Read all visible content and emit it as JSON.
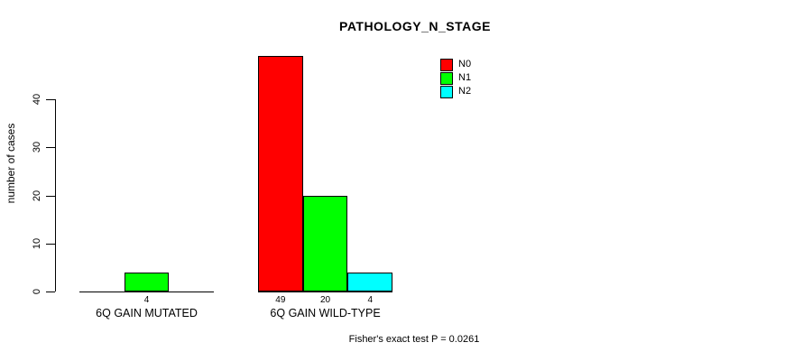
{
  "title": "PATHOLOGY_N_STAGE",
  "y_axis": {
    "label": "number of cases",
    "ticks": [
      0,
      10,
      20,
      30,
      40
    ]
  },
  "legend": {
    "entries": [
      {
        "label": "N0",
        "color": "#ff0000"
      },
      {
        "label": "N1",
        "color": "#00ff00"
      },
      {
        "label": "N2",
        "color": "#00ffff"
      }
    ]
  },
  "footer": "Fisher's exact test P = 0.0261",
  "chart_data": {
    "type": "bar",
    "title": "PATHOLOGY_N_STAGE",
    "categories": [
      "6Q GAIN MUTATED",
      "6Q GAIN WILD-TYPE"
    ],
    "series": [
      {
        "name": "N0",
        "color": "#ff0000",
        "values": [
          0,
          49
        ]
      },
      {
        "name": "N1",
        "color": "#00ff00",
        "values": [
          4,
          20
        ]
      },
      {
        "name": "N2",
        "color": "#00ffff",
        "values": [
          0,
          4
        ]
      }
    ],
    "bar_labels": [
      [
        "",
        "4",
        ""
      ],
      [
        "49",
        "20",
        "4"
      ]
    ],
    "xlabel": "",
    "ylabel": "number of cases",
    "ylim": [
      0,
      40
    ],
    "yticks": [
      0,
      10,
      20,
      30,
      40
    ],
    "grid": false,
    "legend_position": "top-right",
    "annotation": "Fisher's exact test P = 0.0261"
  }
}
